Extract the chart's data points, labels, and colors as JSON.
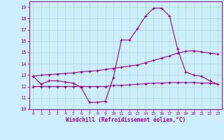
{
  "xlabel": "Windchill (Refroidissement éolien,°C)",
  "bg_color": "#cceeff",
  "grid_color": "#aaddcc",
  "line_color": "#990099",
  "xlim": [
    -0.5,
    23.5
  ],
  "ylim": [
    10,
    19.5
  ],
  "yticks": [
    10,
    11,
    12,
    13,
    14,
    15,
    16,
    17,
    18,
    19
  ],
  "xticks": [
    0,
    1,
    2,
    3,
    4,
    5,
    6,
    7,
    8,
    9,
    10,
    11,
    12,
    13,
    14,
    15,
    16,
    17,
    18,
    19,
    20,
    21,
    22,
    23
  ],
  "hours": [
    0,
    1,
    2,
    3,
    4,
    5,
    6,
    7,
    8,
    9,
    10,
    11,
    12,
    13,
    14,
    15,
    16,
    17,
    18,
    19,
    20,
    21,
    22,
    23
  ],
  "windchill": [
    12.9,
    12.2,
    12.5,
    12.5,
    12.4,
    12.3,
    11.9,
    10.6,
    10.6,
    10.7,
    12.8,
    16.1,
    16.1,
    17.1,
    18.2,
    18.9,
    18.9,
    18.2,
    15.3,
    13.3,
    13.0,
    12.9,
    12.5,
    12.2
  ],
  "trend_low": [
    12.0,
    12.0,
    12.0,
    12.0,
    12.0,
    12.0,
    12.0,
    12.0,
    12.0,
    12.0,
    12.1,
    12.1,
    12.15,
    12.2,
    12.25,
    12.3,
    12.3,
    12.35,
    12.35,
    12.35,
    12.35,
    12.3,
    12.3,
    12.2
  ],
  "trend_high": [
    12.9,
    13.0,
    13.05,
    13.1,
    13.15,
    13.2,
    13.3,
    13.35,
    13.4,
    13.5,
    13.6,
    13.7,
    13.8,
    13.9,
    14.1,
    14.3,
    14.5,
    14.7,
    14.95,
    15.1,
    15.15,
    15.05,
    14.95,
    14.85
  ]
}
